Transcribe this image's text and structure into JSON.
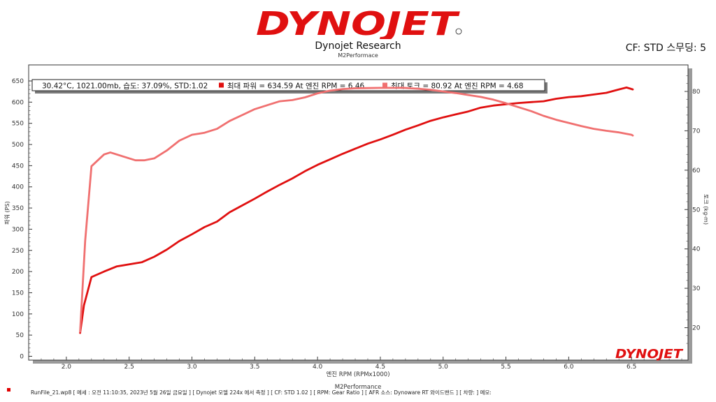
{
  "header": {
    "logo_text": "DYNOJET",
    "title": "Dynojet Research",
    "subtitle": "M2Performace",
    "cf_label": "CF: STD 스무딩: 5"
  },
  "legend": {
    "conditions": "30.42°C,  1021.00mb, 습도: 37.09%, STD:1.02",
    "power_text": "최대 파워 = 634.59 At 엔진 RPM = 6.46",
    "torque_text": "최대 토크 = 80.92 At 엔진 RPM = 4.68"
  },
  "chart_data": {
    "type": "line",
    "xlabel": "엔진 RPM (RPMx1000)",
    "x_caption": "M2Performance",
    "ylabel_left": "파워 (PS)",
    "ylabel_right": "토크 (kg-m)",
    "xlim": [
      1.7,
      6.95
    ],
    "ylim_left": [
      0,
      650
    ],
    "ylim_right": [
      13.6,
      86.2
    ],
    "x_ticks": [
      "2.0",
      "2.5",
      "3.0",
      "3.5",
      "4.0",
      "4.5",
      "5.0",
      "5.5",
      "6.0",
      "6.5"
    ],
    "y_left_ticks": [
      "0",
      "50",
      "100",
      "150",
      "200",
      "250",
      "300",
      "350",
      "400",
      "450",
      "500",
      "550",
      "600",
      "650"
    ],
    "y_right_ticks": [
      "20",
      "30",
      "40",
      "50",
      "60",
      "70",
      "80"
    ],
    "grid": false,
    "colors": {
      "power": "#e01010",
      "torque": "#f07070"
    },
    "series": [
      {
        "name": "최대 파워",
        "axis": "left",
        "x": [
          2.11,
          2.14,
          2.2,
          2.3,
          2.4,
          2.5,
          2.6,
          2.7,
          2.8,
          2.9,
          3.0,
          3.1,
          3.2,
          3.3,
          3.4,
          3.5,
          3.6,
          3.7,
          3.8,
          3.9,
          4.0,
          4.1,
          4.2,
          4.3,
          4.4,
          4.5,
          4.6,
          4.7,
          4.8,
          4.9,
          5.0,
          5.1,
          5.2,
          5.3,
          5.4,
          5.5,
          5.6,
          5.7,
          5.8,
          5.9,
          6.0,
          6.1,
          6.2,
          6.3,
          6.4,
          6.46,
          6.51
        ],
        "y": [
          55,
          120,
          187,
          200,
          212,
          217,
          222,
          235,
          252,
          272,
          288,
          305,
          318,
          340,
          356,
          372,
          389,
          405,
          420,
          437,
          452,
          465,
          478,
          490,
          502,
          512,
          523,
          535,
          545,
          556,
          564,
          571,
          578,
          587,
          592,
          595,
          598,
          600,
          602,
          608,
          612,
          614,
          618,
          622,
          630,
          634.59,
          630
        ]
      },
      {
        "name": "최대 토크",
        "axis": "right",
        "x": [
          2.11,
          2.15,
          2.2,
          2.3,
          2.35,
          2.45,
          2.55,
          2.62,
          2.7,
          2.8,
          2.9,
          3.0,
          3.1,
          3.2,
          3.3,
          3.4,
          3.5,
          3.6,
          3.7,
          3.8,
          3.9,
          4.0,
          4.1,
          4.2,
          4.3,
          4.4,
          4.5,
          4.6,
          4.68,
          4.8,
          4.9,
          5.0,
          5.1,
          5.2,
          5.3,
          5.4,
          5.5,
          5.6,
          5.7,
          5.8,
          5.9,
          6.0,
          6.1,
          6.2,
          6.3,
          6.4,
          6.5,
          6.51
        ],
        "y": [
          19,
          42,
          61,
          64,
          64.5,
          63.5,
          62.5,
          62.5,
          63,
          65,
          67.5,
          69,
          69.5,
          70.5,
          72.5,
          74,
          75.5,
          76.5,
          77.5,
          77.8,
          78.5,
          79.5,
          80.2,
          80.6,
          80.8,
          80.85,
          80.9,
          80.9,
          80.92,
          80.7,
          80.4,
          80,
          79.6,
          79.1,
          78.6,
          77.9,
          77.0,
          76.0,
          75.0,
          73.8,
          72.8,
          72.0,
          71.2,
          70.5,
          70.0,
          69.6,
          69.0,
          68.8
        ]
      }
    ]
  },
  "footer": {
    "text": "RunFile_21.wp8  [ 메세 : 오전 11:10:35, 2023년 5월 26일 금요일 ] [ Dynojet 모델 224x 에서 측정 ] [ CF: STD 1.02 ] [ RPM: Gear Ratio ] [ AFR 소스: Dynoware RT 와이드밴드 ] [ 차량: ]  메모:"
  }
}
